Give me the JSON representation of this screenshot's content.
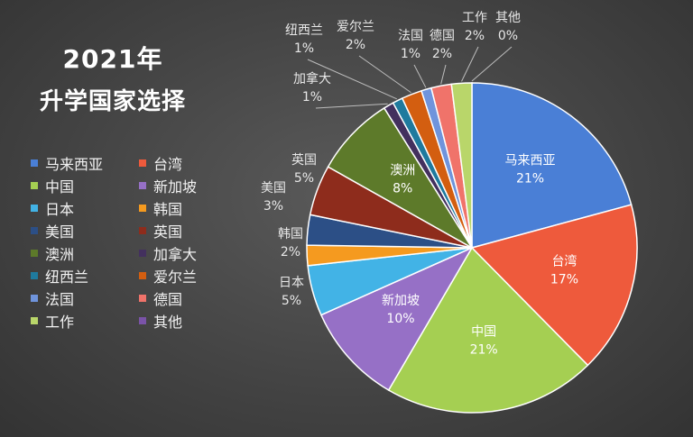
{
  "title_line1": "2021年",
  "title_line2": "升学国家选择",
  "colors": [
    "#4a7fd6",
    "#ee5a3c",
    "#a5cf52",
    "#9670c6",
    "#42b3e6",
    "#f59a1f",
    "#2c4f86",
    "#8e2c1c",
    "#5d7a2a",
    "#43305e",
    "#1f7a9e",
    "#d35e10",
    "#6f94dc",
    "#f0736a",
    "#b9d66a",
    "#7a53a8"
  ],
  "chart_data": {
    "type": "pie",
    "title": "2021年 升学国家选择",
    "categories": [
      "马来西亚",
      "台湾",
      "中国",
      "新加坡",
      "日本",
      "韩国",
      "美国",
      "英国",
      "澳洲",
      "加拿大",
      "纽西兰",
      "爱尔兰",
      "法国",
      "德国",
      "工作",
      "其他"
    ],
    "values": [
      21,
      17,
      21,
      10,
      5,
      2,
      3,
      5,
      8,
      1,
      1,
      2,
      1,
      2,
      2,
      0
    ],
    "labels": [
      "21%",
      "17%",
      "21%",
      "10%",
      "5%",
      "2%",
      "3%",
      "5%",
      "8%",
      "1%",
      "1%",
      "2%",
      "1%",
      "2%",
      "2%",
      "0%"
    ],
    "legend_position": "left",
    "start_angle_deg": 0,
    "direction": "clockwise"
  }
}
